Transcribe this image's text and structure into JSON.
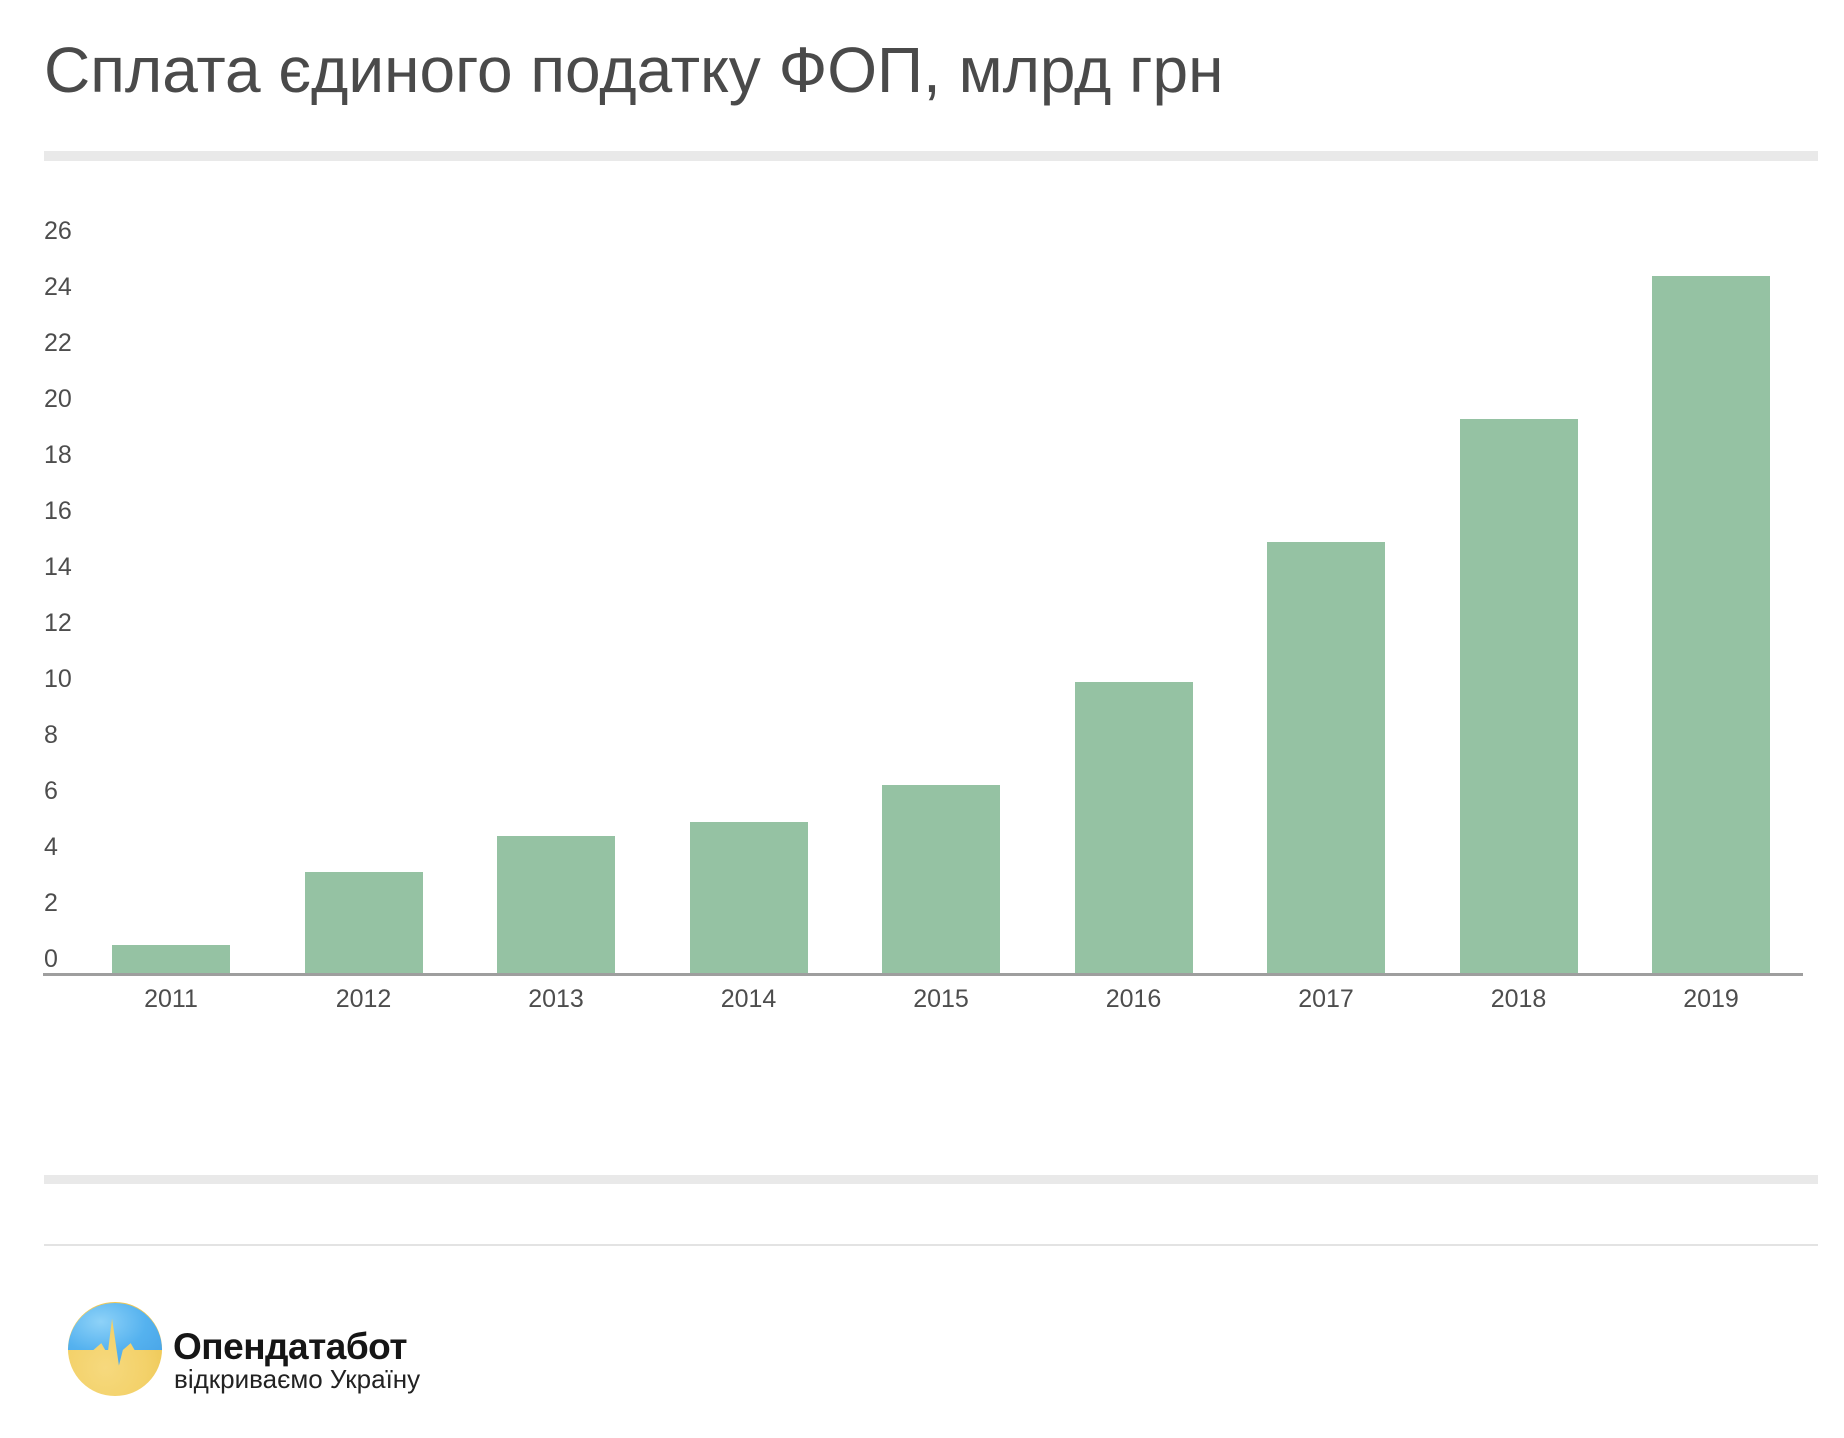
{
  "title": "Сплата єдиного податку ФОП, млрд грн",
  "chart_data": {
    "type": "bar",
    "title": "Сплата єдиного податку ФОП, млрд грн",
    "categories": [
      "2011",
      "2012",
      "2013",
      "2014",
      "2015",
      "2016",
      "2017",
      "2018",
      "2019"
    ],
    "values": [
      0.5,
      3.1,
      4.4,
      4.9,
      6.2,
      9.9,
      14.9,
      19.3,
      24.4
    ],
    "xlabel": "",
    "ylabel": "",
    "ylim": [
      0,
      26
    ],
    "yticks": [
      26,
      24,
      22,
      20,
      18,
      16,
      14,
      12,
      10,
      8,
      6,
      4,
      2,
      0
    ],
    "grid": "off",
    "legend": "none",
    "bar_color": "#95c2a3",
    "axis_color": "#9e9e9e",
    "tick_label_color": "#4d4d4d",
    "title_color": "#4a4a4a"
  },
  "footer": {
    "logo": {
      "name": "Опендатабот",
      "tagline": "відкриваємо Україну",
      "colors": {
        "blue": "#55b2ef",
        "blue_light": "#8ed2f8",
        "yellow": "#f3d169",
        "yellow_deep": "#ecc44e"
      }
    }
  }
}
